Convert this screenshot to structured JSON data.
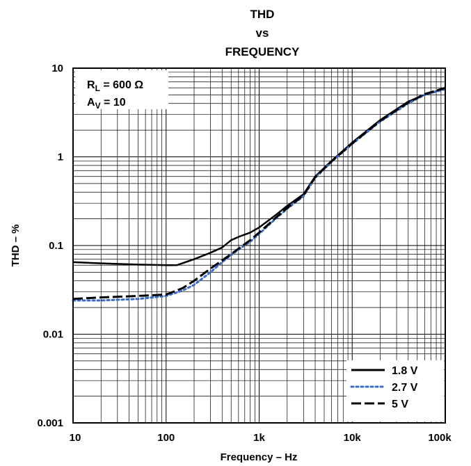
{
  "chart_data": {
    "type": "line",
    "title": [
      "THD",
      "vs",
      "FREQUENCY"
    ],
    "xlabel": "Frequency – Hz",
    "ylabel": "THD – %",
    "xscale": "log",
    "yscale": "log",
    "xlim": [
      10,
      100000
    ],
    "ylim": [
      0.001,
      10
    ],
    "xticks": [
      {
        "value": 10,
        "label": "10"
      },
      {
        "value": 100,
        "label": "100"
      },
      {
        "value": 1000,
        "label": "1k"
      },
      {
        "value": 10000,
        "label": "10k"
      },
      {
        "value": 100000,
        "label": "100k"
      }
    ],
    "yticks": [
      {
        "value": 0.001,
        "label": "0.001"
      },
      {
        "value": 0.01,
        "label": "0.01"
      },
      {
        "value": 0.1,
        "label": "0.1"
      },
      {
        "value": 1,
        "label": "1"
      },
      {
        "value": 10,
        "label": "10"
      }
    ],
    "grid": true,
    "annotations": {
      "rl": {
        "main": "R",
        "sub": "L",
        "rest": " = 600 Ω"
      },
      "av": {
        "main": "A",
        "sub": "V",
        "rest": " = 10"
      }
    },
    "legend_position": "bottom-right",
    "series": [
      {
        "name": "1.8 V",
        "color": "#000000",
        "dash": "solid",
        "x": [
          10,
          20,
          50,
          100,
          130,
          200,
          300,
          400,
          500,
          600,
          800,
          1000,
          1500,
          2000,
          3000,
          4000,
          6000,
          10000,
          20000,
          40000,
          60000,
          100000
        ],
        "y": [
          0.065,
          0.063,
          0.061,
          0.06,
          0.06,
          0.07,
          0.083,
          0.095,
          0.115,
          0.125,
          0.14,
          0.16,
          0.22,
          0.28,
          0.38,
          0.6,
          0.9,
          1.45,
          2.6,
          4.2,
          5.0,
          5.9
        ]
      },
      {
        "name": "2.7 V",
        "color": "#3b6cc4",
        "dash": "dotted",
        "x": [
          10,
          20,
          50,
          100,
          150,
          200,
          300,
          400,
          500,
          600,
          800,
          1000,
          1500,
          2000,
          3000,
          4000,
          6000,
          10000,
          20000,
          40000,
          60000,
          100000
        ],
        "y": [
          0.024,
          0.024,
          0.025,
          0.027,
          0.031,
          0.036,
          0.05,
          0.065,
          0.078,
          0.09,
          0.11,
          0.135,
          0.2,
          0.26,
          0.36,
          0.58,
          0.88,
          1.4,
          2.5,
          4.0,
          5.0,
          5.8
        ]
      },
      {
        "name": "5 V",
        "color": "#000000",
        "dash": "dashed",
        "x": [
          10,
          20,
          50,
          100,
          150,
          200,
          300,
          400,
          500,
          600,
          800,
          1000,
          1500,
          2000,
          3000,
          4000,
          6000,
          10000,
          20000,
          40000,
          60000,
          100000
        ],
        "y": [
          0.025,
          0.026,
          0.027,
          0.028,
          0.033,
          0.04,
          0.055,
          0.068,
          0.08,
          0.092,
          0.115,
          0.14,
          0.205,
          0.265,
          0.37,
          0.59,
          0.89,
          1.42,
          2.55,
          4.1,
          5.1,
          6.0
        ]
      }
    ]
  }
}
